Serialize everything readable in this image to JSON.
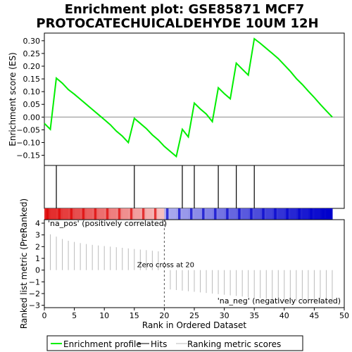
{
  "title": [
    "Enrichment plot: GSE85871 MCF7",
    "PROTOCATECHUICALDEHYDE 10UM 12H"
  ],
  "chart_data": {
    "type": "line",
    "title": "Enrichment plot: GSE85871 MCF7 PROTOCATECHUICALDEHYDE 10UM 12H",
    "xlabel": "Rank in Ordered Dataset",
    "xlim": [
      0,
      50
    ],
    "x_ticks": [
      0,
      5,
      10,
      15,
      20,
      25,
      30,
      35,
      40,
      45,
      50
    ],
    "es_panel": {
      "ylabel": "Enrichment score (ES)",
      "ylim": [
        -0.19,
        0.33
      ],
      "y_ticks": [
        -0.15,
        -0.1,
        -0.05,
        0.0,
        0.05,
        0.1,
        0.15,
        0.2,
        0.25,
        0.3
      ],
      "y_tick_labels": [
        "−0.15",
        "−0.10",
        "−0.05",
        "0.00",
        "0.05",
        "0.10",
        "0.15",
        "0.20",
        "0.25",
        "0.30"
      ],
      "series": {
        "name": "Enrichment profile",
        "color": "#00ee00",
        "x": [
          0,
          1,
          2,
          3,
          4,
          5,
          6,
          7,
          8,
          9,
          10,
          11,
          12,
          13,
          14,
          15,
          16,
          17,
          18,
          19,
          20,
          21,
          22,
          23,
          24,
          25,
          26,
          27,
          28,
          29,
          30,
          31,
          32,
          33,
          34,
          35,
          36,
          37,
          38,
          39,
          40,
          41,
          42,
          43,
          44,
          45,
          46,
          47,
          48
        ],
        "y": [
          -0.025,
          -0.048,
          0.153,
          0.133,
          0.108,
          0.09,
          0.07,
          0.05,
          0.03,
          0.01,
          -0.01,
          -0.03,
          -0.055,
          -0.075,
          -0.1,
          -0.005,
          -0.025,
          -0.045,
          -0.07,
          -0.09,
          -0.115,
          -0.135,
          -0.155,
          -0.048,
          -0.078,
          0.055,
          0.032,
          0.012,
          -0.018,
          0.115,
          0.092,
          0.072,
          0.212,
          0.188,
          0.165,
          0.308,
          0.29,
          0.27,
          0.25,
          0.23,
          0.205,
          0.18,
          0.152,
          0.128,
          0.102,
          0.077,
          0.05,
          0.025,
          0.0
        ]
      }
    },
    "hits": {
      "name": "Hits",
      "x": [
        2,
        15,
        23,
        25,
        29,
        32,
        35
      ]
    },
    "ranking_panel": {
      "ylabel": "Ranked list metric (PreRanked)",
      "ylim": [
        -3.2,
        4.3
      ],
      "y_ticks": [
        -3,
        -2,
        -1,
        0,
        1,
        2,
        3,
        4
      ],
      "y_tick_labels": [
        "−3",
        "−2",
        "−1",
        "0",
        "1",
        "2",
        "3",
        "4"
      ],
      "series": {
        "name": "Ranking metric scores",
        "x": [
          1,
          2,
          3,
          4,
          5,
          6,
          7,
          8,
          9,
          10,
          11,
          12,
          13,
          14,
          15,
          16,
          17,
          18,
          19,
          20,
          21,
          22,
          23,
          24,
          25,
          26,
          27,
          28,
          29,
          30,
          31,
          32,
          33,
          34,
          35,
          36,
          37,
          38,
          39,
          40,
          41,
          42,
          43,
          44,
          45,
          46,
          47,
          48
        ],
        "values": [
          3.05,
          2.85,
          2.65,
          2.5,
          2.4,
          2.3,
          2.22,
          2.15,
          2.1,
          2.05,
          2.0,
          1.95,
          1.9,
          1.85,
          1.8,
          1.75,
          1.7,
          1.65,
          1.6,
          0.0,
          -1.65,
          -1.7,
          -1.75,
          -1.8,
          -1.85,
          -1.9,
          -1.95,
          -2.0,
          -2.05,
          -2.1,
          -2.15,
          -2.2,
          -2.25,
          -2.3,
          -2.35,
          -2.4,
          -2.45,
          -2.5,
          -2.55,
          -2.6,
          -2.62,
          -2.65,
          -2.68,
          -2.7,
          -2.72,
          -2.75,
          -2.78,
          -2.8
        ]
      },
      "zero_cross_label": "Zero cross at 20",
      "zero_cross_x": 20,
      "pos_label": "'na_pos' (positively correlated)",
      "neg_label": "'na_neg' (negatively correlated)",
      "pos_color": "#dd0000",
      "neg_color": "#0000cc"
    },
    "legend": {
      "placement": "bottom",
      "items": [
        {
          "label": "Enrichment profile",
          "color": "#00ee00",
          "style": "line"
        },
        {
          "label": "Hits",
          "color": "#000000",
          "style": "line"
        },
        {
          "label": "Ranking metric scores",
          "color": "#bbbbbb",
          "style": "line"
        }
      ]
    }
  }
}
